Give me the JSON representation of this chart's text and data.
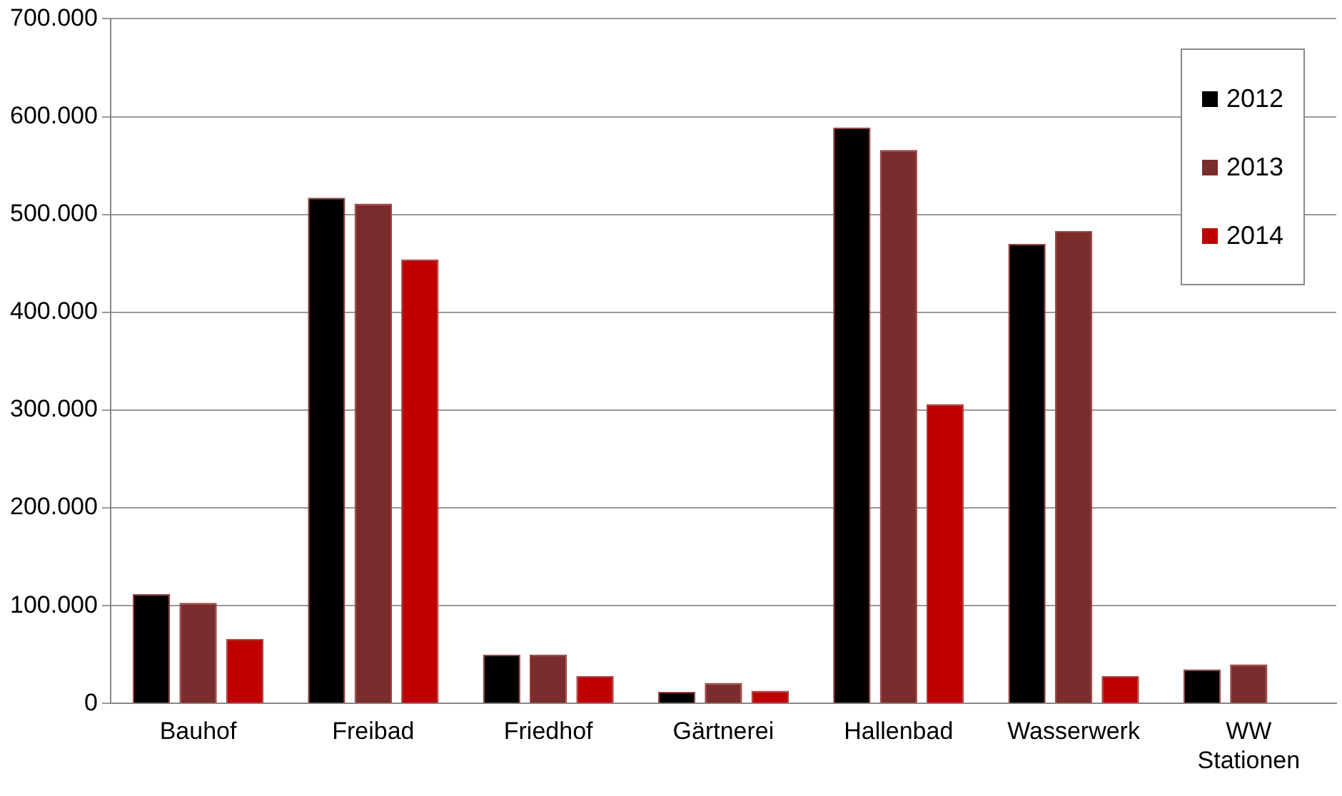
{
  "chart_data": {
    "type": "bar",
    "categories": [
      "Bauhof",
      "Freibad",
      "Friedhof",
      "Gärtnerei",
      "Hallenbad",
      "Wasserwerk",
      "WW Stationen"
    ],
    "series": [
      {
        "name": "2012",
        "color": "#000000",
        "values": [
          112000,
          517000,
          50000,
          12000,
          589000,
          470000,
          35000
        ]
      },
      {
        "name": "2013",
        "color": "#7b2c2c",
        "values": [
          103000,
          511000,
          50000,
          21000,
          566000,
          483000,
          40000
        ]
      },
      {
        "name": "2014",
        "color": "#c00000",
        "values": [
          66000,
          454000,
          28000,
          13000,
          306000,
          28000,
          null
        ]
      }
    ],
    "ylim": [
      0,
      700000
    ],
    "yticks": [
      0,
      {
        "value": 100000,
        "label": "100.000"
      },
      {
        "value": 200000,
        "label": "200.000"
      },
      {
        "value": 300000,
        "label": "300.000"
      },
      {
        "value": 400000,
        "label": "400.000"
      },
      {
        "value": 500000,
        "label": "500.000"
      },
      {
        "value": 600000,
        "label": "600.000"
      },
      {
        "value": 700000,
        "label": "700.000"
      }
    ],
    "grid": "y",
    "legend": "top right"
  }
}
